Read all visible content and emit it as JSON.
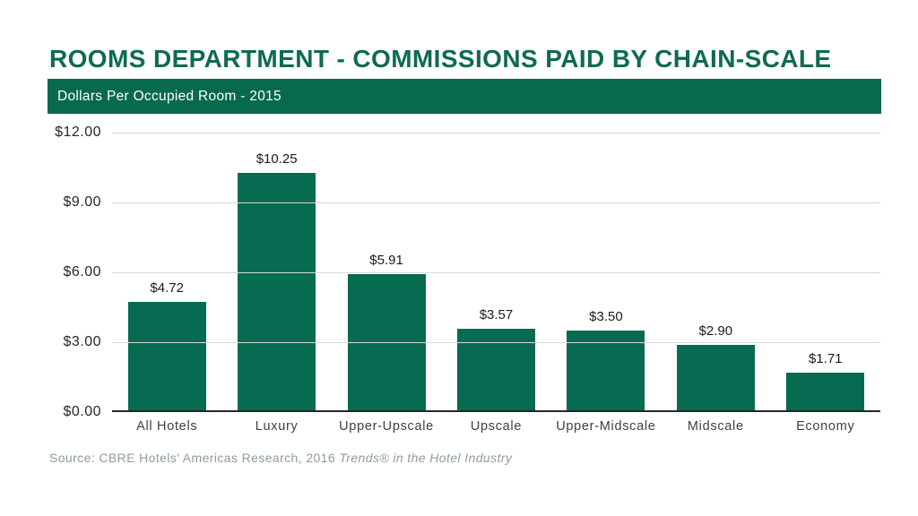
{
  "title": "ROOMS DEPARTMENT - COMMISSIONS PAID BY CHAIN-SCALE",
  "banner": {
    "text": "Dollars Per Occupied Room - 2015"
  },
  "chart_data": {
    "type": "bar",
    "title": "ROOMS DEPARTMENT - COMMISSIONS PAID BY CHAIN-SCALE",
    "subtitle": "Dollars Per Occupied Room - 2015",
    "categories": [
      "All Hotels",
      "Luxury",
      "Upper-Upscale",
      "Upscale",
      "Upper-Midscale",
      "Midscale",
      "Economy"
    ],
    "values": [
      4.72,
      10.25,
      5.91,
      3.57,
      3.5,
      2.9,
      1.71
    ],
    "value_labels": [
      "$4.72",
      "$10.25",
      "$5.91",
      "$3.57",
      "$3.50",
      "$2.90",
      "$1.71"
    ],
    "ylim": [
      0,
      12
    ],
    "yticks": [
      {
        "value": 12,
        "label": "$12.00"
      },
      {
        "value": 9,
        "label": "$9.00"
      },
      {
        "value": 6,
        "label": "$6.00"
      },
      {
        "value": 3,
        "label": "$3.00"
      },
      {
        "value": 0,
        "label": "$0.00"
      }
    ],
    "xlabel": "",
    "ylabel": "",
    "grid": "horizontal",
    "legend": "none",
    "bar_color": "#066b50"
  },
  "source": {
    "prefix": "Source: CBRE Hotels' Americas Research, 2016 ",
    "italic": "Trends® in the Hotel Industry"
  },
  "colors": {
    "accent_green": "#066b50",
    "banner_green": "#07694e",
    "title_green": "#0e6b52",
    "gridline": "#d9d9d9",
    "axis_line": "#262626",
    "source_gray": "#8e9b9b"
  }
}
